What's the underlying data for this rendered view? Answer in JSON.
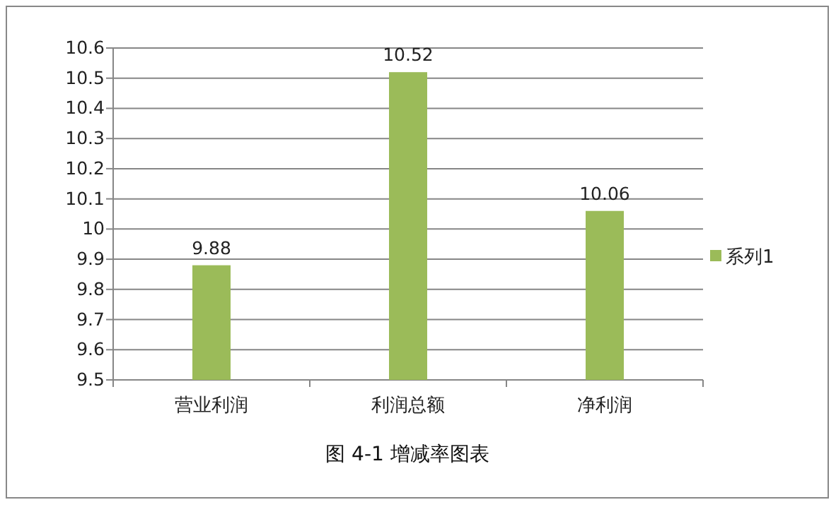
{
  "chart_data": {
    "type": "bar",
    "title": "图 4-1 增减率图表",
    "categories": [
      "营业利润",
      "利润总额",
      "净利润"
    ],
    "series": [
      {
        "name": "系列1",
        "color": "#9bbb59",
        "values": [
          9.88,
          10.52,
          10.06
        ]
      }
    ],
    "ylim": [
      9.5,
      10.6
    ],
    "yticks": [
      9.5,
      9.6,
      9.7,
      9.8,
      9.9,
      10,
      10.1,
      10.2,
      10.3,
      10.4,
      10.5,
      10.6
    ],
    "grid": "y",
    "legend": "right",
    "data_labels": true
  }
}
